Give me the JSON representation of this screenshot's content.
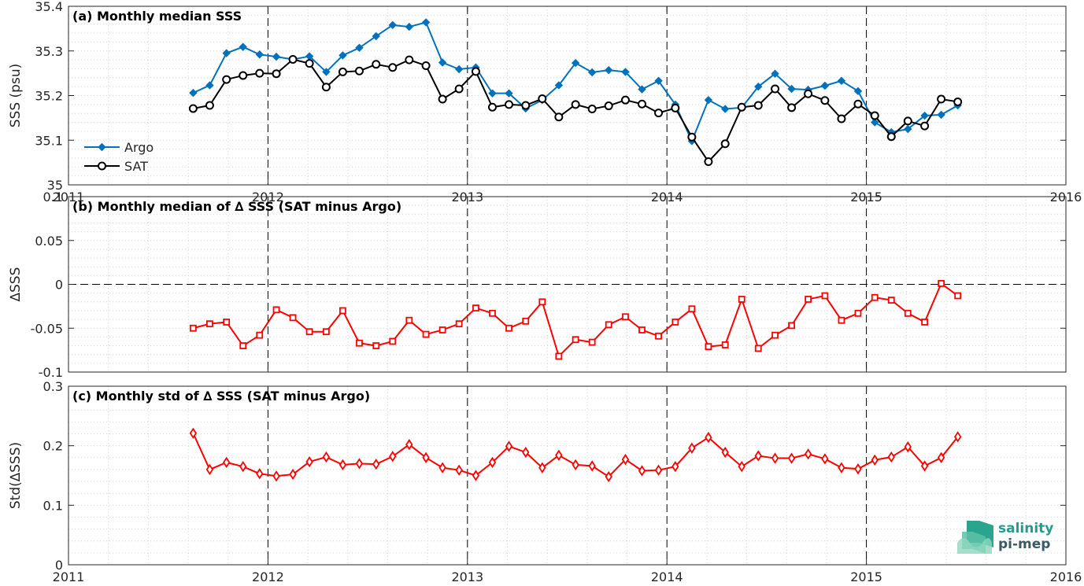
{
  "chart_data": [
    {
      "type": "line",
      "title": "(a) Monthly median SSS",
      "xlabel": "",
      "ylabel": "SSS (psu)",
      "xlim": [
        2011,
        2016
      ],
      "ylim": [
        35,
        35.4
      ],
      "xticks": [
        "2011",
        "2012",
        "2013",
        "2014",
        "2015",
        "2016"
      ],
      "yticks": [
        "35",
        "35.1",
        "35.2",
        "35.3",
        "35.4"
      ],
      "grid": "dotted minor grid",
      "legend": "bottom-left",
      "x": [
        2011.625,
        2011.708,
        2011.792,
        2011.875,
        2011.958,
        2012.042,
        2012.125,
        2012.208,
        2012.292,
        2012.375,
        2012.458,
        2012.542,
        2012.625,
        2012.708,
        2012.792,
        2012.875,
        2012.958,
        2013.042,
        2013.125,
        2013.208,
        2013.292,
        2013.375,
        2013.458,
        2013.542,
        2013.625,
        2013.708,
        2013.792,
        2013.875,
        2013.958,
        2014.042,
        2014.125,
        2014.208,
        2014.292,
        2014.375,
        2014.458,
        2014.542,
        2014.625,
        2014.708,
        2014.792,
        2014.875,
        2014.958,
        2015.042,
        2015.125,
        2015.208,
        2015.292,
        2015.375,
        2015.458
      ],
      "series": [
        {
          "name": "Argo",
          "color": "#0072bd",
          "marker": "diamond-filled",
          "values": [
            35.206,
            35.223,
            35.295,
            35.309,
            35.292,
            35.287,
            35.281,
            35.288,
            35.253,
            35.29,
            35.307,
            35.333,
            35.358,
            35.354,
            35.364,
            35.274,
            35.259,
            35.263,
            35.205,
            35.205,
            35.171,
            35.19,
            35.223,
            35.273,
            35.252,
            35.257,
            35.253,
            35.214,
            35.233,
            35.18,
            35.098,
            35.19,
            35.17,
            35.173,
            35.22,
            35.249,
            35.215,
            35.213,
            35.222,
            35.233,
            35.21,
            35.14,
            35.118,
            35.125,
            35.155,
            35.157,
            35.178
          ]
        },
        {
          "name": "SAT",
          "color": "#000000",
          "marker": "circle-open",
          "values": [
            35.171,
            35.178,
            35.236,
            35.245,
            35.25,
            35.249,
            35.281,
            35.272,
            35.219,
            35.253,
            35.255,
            35.27,
            35.263,
            35.28,
            35.267,
            35.192,
            35.215,
            35.254,
            35.174,
            35.18,
            35.178,
            35.193,
            35.152,
            35.18,
            35.17,
            35.177,
            35.19,
            35.181,
            35.161,
            35.172,
            35.107,
            35.052,
            35.092,
            35.174,
            35.178,
            35.215,
            35.173,
            35.204,
            35.189,
            35.148,
            35.181,
            35.155,
            35.108,
            35.143,
            35.132,
            35.192,
            35.186
          ]
        }
      ]
    },
    {
      "type": "line",
      "title": "(b) Monthly median of ∆ SSS (SAT minus Argo)",
      "xlabel": "",
      "ylabel": "∆SSS",
      "xlim": [
        2011,
        2016
      ],
      "ylim": [
        -0.1,
        0.1
      ],
      "yticks": [
        "-0.1",
        "-0.05",
        "0",
        "0.05",
        "0.1"
      ],
      "zero_line": true,
      "x": [
        2011.625,
        2011.708,
        2011.792,
        2011.875,
        2011.958,
        2012.042,
        2012.125,
        2012.208,
        2012.292,
        2012.375,
        2012.458,
        2012.542,
        2012.625,
        2012.708,
        2012.792,
        2012.875,
        2012.958,
        2013.042,
        2013.125,
        2013.208,
        2013.292,
        2013.375,
        2013.458,
        2013.542,
        2013.625,
        2013.708,
        2013.792,
        2013.875,
        2013.958,
        2014.042,
        2014.125,
        2014.208,
        2014.292,
        2014.375,
        2014.458,
        2014.542,
        2014.625,
        2014.708,
        2014.792,
        2014.875,
        2014.958,
        2015.042,
        2015.125,
        2015.208,
        2015.292,
        2015.375,
        2015.458
      ],
      "series": [
        {
          "color": "#ff0000",
          "marker": "square-open",
          "values": [
            -0.05,
            -0.045,
            -0.043,
            -0.07,
            -0.058,
            -0.029,
            -0.038,
            -0.054,
            -0.054,
            -0.03,
            -0.067,
            -0.07,
            -0.065,
            -0.041,
            -0.057,
            -0.052,
            -0.045,
            -0.027,
            -0.033,
            -0.05,
            -0.042,
            -0.02,
            -0.082,
            -0.063,
            -0.066,
            -0.046,
            -0.037,
            -0.052,
            -0.059,
            -0.043,
            -0.028,
            -0.071,
            -0.069,
            -0.017,
            -0.073,
            -0.058,
            -0.047,
            -0.017,
            -0.013,
            -0.041,
            -0.033,
            -0.015,
            -0.018,
            -0.033,
            -0.043,
            0.001,
            -0.013
          ]
        }
      ]
    },
    {
      "type": "line",
      "title": "(c) Monthly std of ∆ SSS (SAT minus Argo)",
      "xlabel": "",
      "ylabel": "Std(∆SSS)",
      "xlim": [
        2011,
        2016
      ],
      "ylim": [
        0,
        0.3
      ],
      "yticks": [
        "0",
        "0.1",
        "0.2",
        "0.3"
      ],
      "x": [
        2011.625,
        2011.708,
        2011.792,
        2011.875,
        2011.958,
        2012.042,
        2012.125,
        2012.208,
        2012.292,
        2012.375,
        2012.458,
        2012.542,
        2012.625,
        2012.708,
        2012.792,
        2012.875,
        2012.958,
        2013.042,
        2013.125,
        2013.208,
        2013.292,
        2013.375,
        2013.458,
        2013.542,
        2013.625,
        2013.708,
        2013.792,
        2013.875,
        2013.958,
        2014.042,
        2014.125,
        2014.208,
        2014.292,
        2014.375,
        2014.458,
        2014.542,
        2014.625,
        2014.708,
        2014.792,
        2014.875,
        2014.958,
        2015.042,
        2015.125,
        2015.208,
        2015.292,
        2015.375,
        2015.458
      ],
      "series": [
        {
          "color": "#ff0000",
          "marker": "diamond-open",
          "values": [
            0.221,
            0.16,
            0.172,
            0.165,
            0.153,
            0.149,
            0.152,
            0.173,
            0.181,
            0.168,
            0.17,
            0.169,
            0.182,
            0.202,
            0.18,
            0.163,
            0.159,
            0.15,
            0.172,
            0.199,
            0.189,
            0.163,
            0.184,
            0.168,
            0.166,
            0.148,
            0.177,
            0.158,
            0.159,
            0.165,
            0.196,
            0.214,
            0.189,
            0.165,
            0.183,
            0.179,
            0.179,
            0.186,
            0.178,
            0.163,
            0.161,
            0.176,
            0.181,
            0.198,
            0.166,
            0.18,
            0.215
          ]
        }
      ]
    }
  ],
  "logo": {
    "line1": "salinity",
    "line2": "pi-mep"
  },
  "colors": {
    "argo": "#0072bd",
    "sat": "#000000",
    "delta": "#ff0000",
    "axis": "#262626",
    "grid": "#d9d9d9"
  }
}
